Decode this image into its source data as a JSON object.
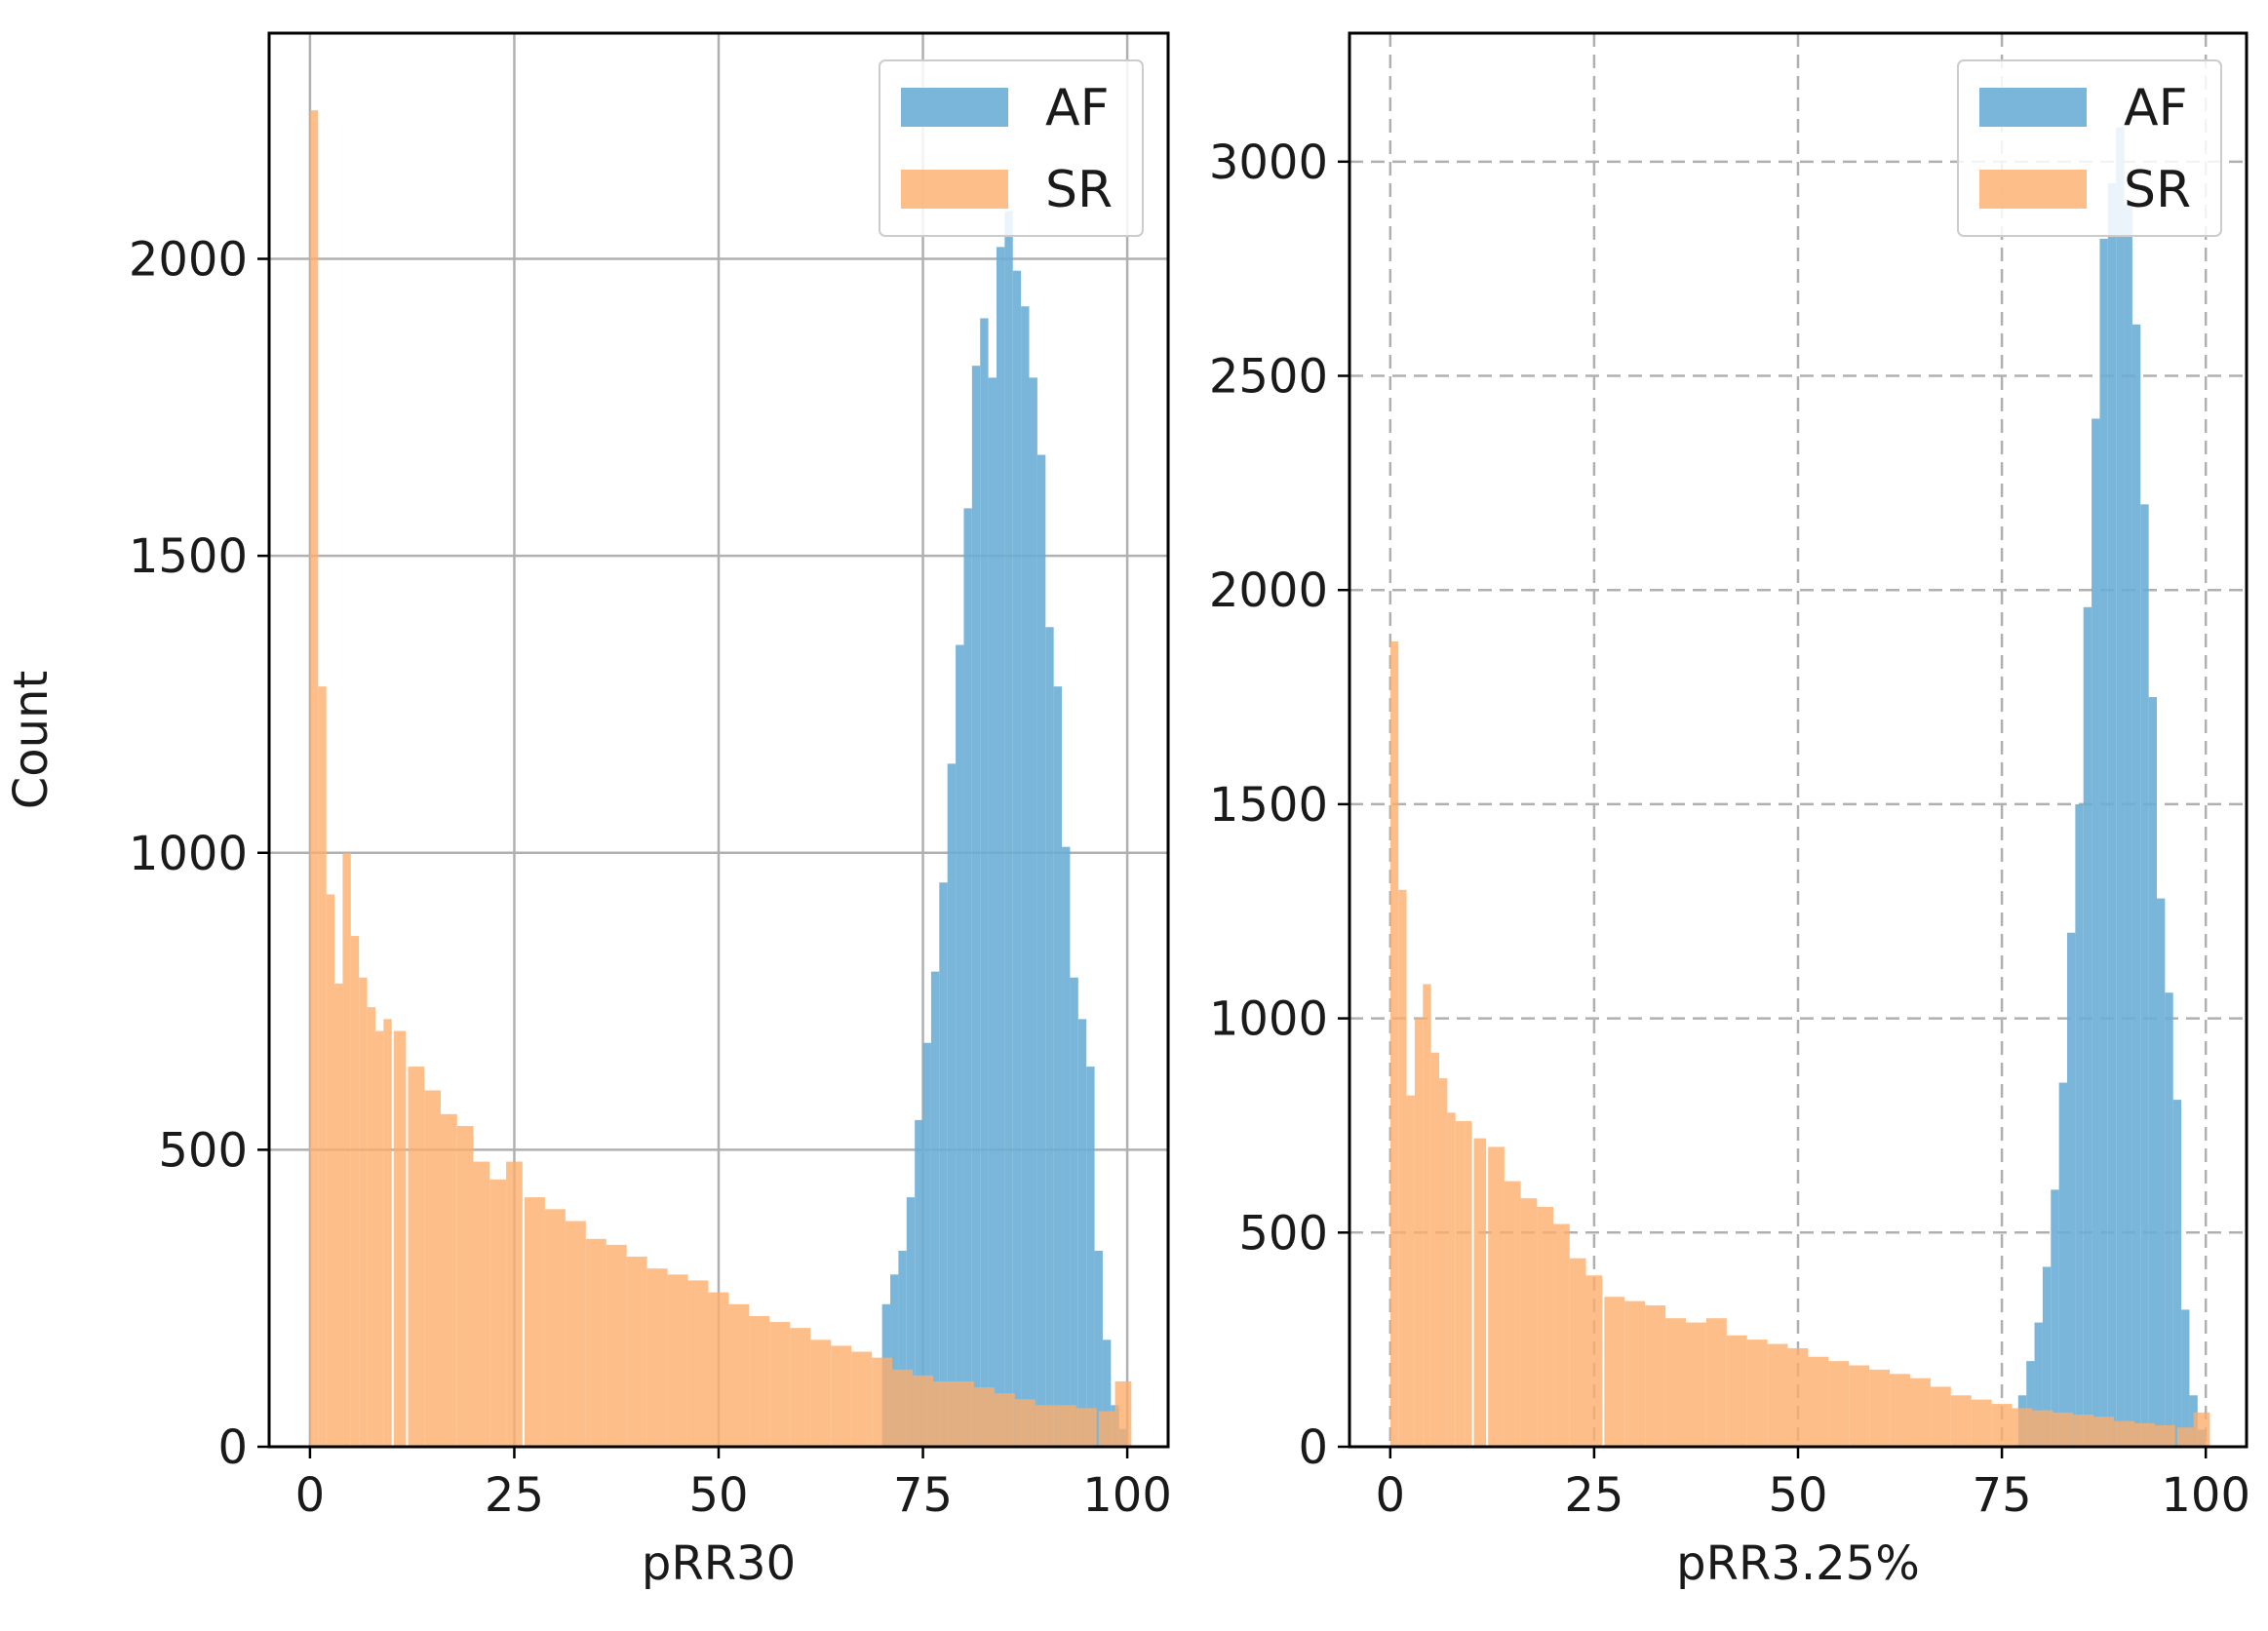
{
  "chart_data": [
    {
      "type": "bar",
      "subtype": "histogram",
      "xlabel": "pRR30",
      "ylabel": "Count",
      "xlim": [
        -5,
        105
      ],
      "ylim": [
        0,
        2380
      ],
      "xticks": [
        0,
        25,
        50,
        75,
        100
      ],
      "yticks": [
        0,
        500,
        1000,
        1500,
        2000
      ],
      "grid": "solid",
      "legend": "top-right",
      "series": [
        {
          "name": "AF",
          "color": "#6baed6",
          "x": [
            70.5,
            71.5,
            72.5,
            73.5,
            74.5,
            75.5,
            76.5,
            77.5,
            78.5,
            79.5,
            80.5,
            81.5,
            82.5,
            83.5,
            84.5,
            85.5,
            86.5,
            87.5,
            88.5,
            89.5,
            90.5,
            91.5,
            92.5,
            93.5,
            94.5,
            95.5,
            96.5,
            97.5,
            98.5,
            99.5
          ],
          "values": [
            240,
            290,
            330,
            420,
            550,
            680,
            800,
            950,
            1150,
            1350,
            1580,
            1820,
            1900,
            1800,
            2020,
            2080,
            1980,
            1920,
            1800,
            1670,
            1380,
            1280,
            1010,
            790,
            720,
            640,
            330,
            180,
            70,
            30
          ]
        },
        {
          "name": "SR",
          "color": "#fdae6b",
          "x": [
            0.5,
            1.5,
            2.5,
            3.5,
            4.5,
            5.5,
            6.5,
            7.5,
            8.5,
            9.5,
            11.0,
            13.0,
            15.0,
            17.0,
            19.0,
            21.0,
            23.0,
            25.0,
            27.5,
            30.0,
            32.5,
            35.0,
            37.5,
            40.0,
            42.5,
            45.0,
            47.5,
            50.0,
            52.5,
            55.0,
            57.5,
            60.0,
            62.5,
            65.0,
            67.5,
            70.0,
            72.5,
            75.0,
            77.5,
            80.0,
            82.5,
            85.0,
            87.5,
            90.0,
            92.5,
            95.0,
            97.5,
            99.5
          ],
          "values": [
            2250,
            1280,
            930,
            780,
            1000,
            860,
            790,
            740,
            700,
            720,
            700,
            640,
            600,
            560,
            540,
            480,
            450,
            480,
            420,
            400,
            380,
            350,
            340,
            320,
            300,
            290,
            280,
            260,
            240,
            220,
            210,
            200,
            180,
            170,
            160,
            150,
            130,
            120,
            110,
            110,
            100,
            90,
            80,
            70,
            70,
            65,
            60,
            110
          ]
        }
      ]
    },
    {
      "type": "bar",
      "subtype": "histogram",
      "xlabel": "pRR3.25%",
      "ylabel": "",
      "xlim": [
        -5,
        105
      ],
      "ylim": [
        0,
        3300
      ],
      "xticks": [
        0,
        25,
        50,
        75,
        100
      ],
      "yticks": [
        0,
        500,
        1000,
        1500,
        2000,
        2500,
        3000
      ],
      "grid": "dashed",
      "legend": "top-right",
      "series": [
        {
          "name": "AF",
          "color": "#6baed6",
          "x": [
            77.5,
            78.5,
            79.5,
            80.5,
            81.5,
            82.5,
            83.5,
            84.5,
            85.5,
            86.5,
            87.5,
            88.5,
            89.5,
            90.5,
            91.5,
            92.5,
            93.5,
            94.5,
            95.5,
            96.5,
            97.5,
            98.5,
            99.5
          ],
          "values": [
            120,
            200,
            290,
            420,
            600,
            850,
            1200,
            1500,
            1960,
            2400,
            2820,
            2950,
            3080,
            2900,
            2620,
            2200,
            1750,
            1280,
            1060,
            810,
            320,
            120,
            40
          ]
        },
        {
          "name": "SR",
          "color": "#fdae6b",
          "x": [
            0.5,
            1.5,
            2.5,
            3.5,
            4.5,
            5.5,
            6.5,
            7.5,
            8.5,
            9.5,
            11.0,
            13.0,
            15.0,
            17.0,
            19.0,
            21.0,
            23.0,
            25.0,
            27.5,
            30.0,
            32.5,
            35.0,
            37.5,
            40.0,
            42.5,
            45.0,
            47.5,
            50.0,
            52.5,
            55.0,
            57.5,
            60.0,
            62.5,
            65.0,
            67.5,
            70.0,
            72.5,
            75.0,
            77.5,
            80.0,
            82.5,
            85.0,
            87.5,
            90.0,
            92.5,
            95.0,
            97.5,
            99.5
          ],
          "values": [
            1880,
            1300,
            820,
            1000,
            1080,
            920,
            860,
            780,
            760,
            760,
            720,
            700,
            620,
            580,
            560,
            520,
            440,
            400,
            350,
            340,
            330,
            300,
            290,
            300,
            260,
            250,
            240,
            230,
            210,
            200,
            190,
            180,
            170,
            160,
            140,
            120,
            110,
            100,
            90,
            85,
            80,
            75,
            70,
            60,
            55,
            50,
            45,
            80
          ]
        }
      ]
    }
  ]
}
